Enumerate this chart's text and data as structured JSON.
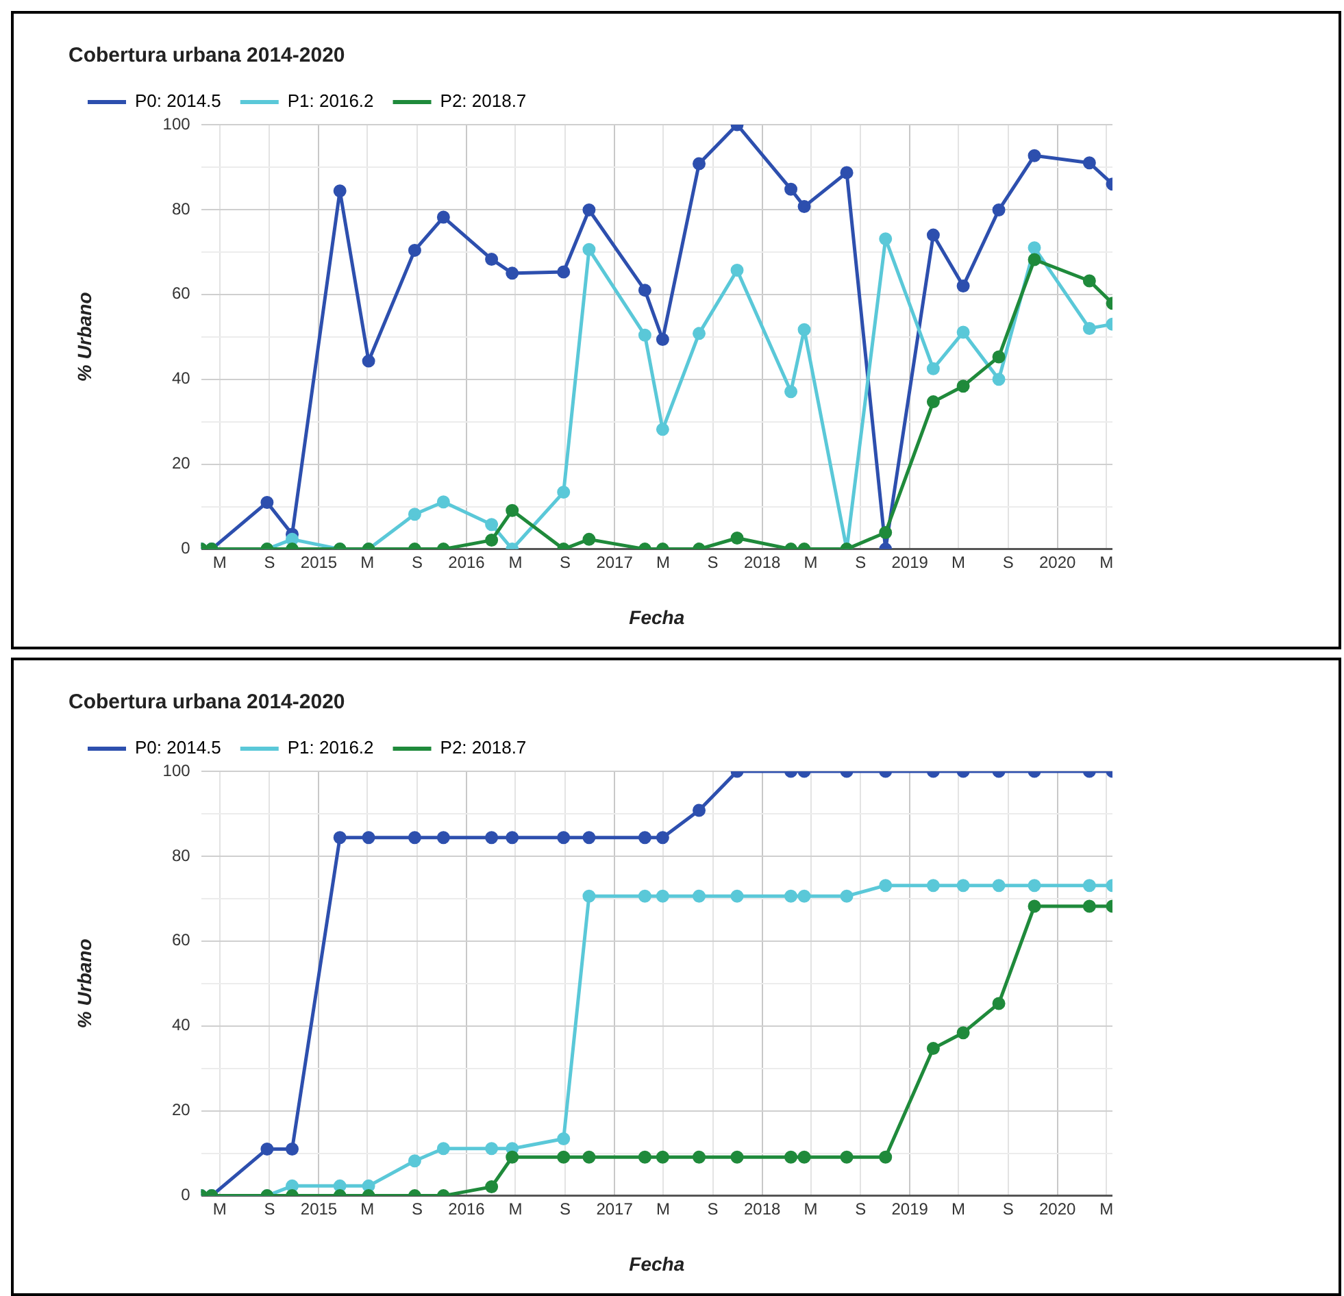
{
  "chart_data": [
    {
      "type": "line",
      "title": "Cobertura urbana 2014-2020",
      "xlabel": "Fecha",
      "ylabel": "% Urbano",
      "x": [
        "2014-03-16",
        "2014-04-11",
        "2014-08-26",
        "2014-10-27",
        "2015-02-22",
        "2015-05-04",
        "2015-08-26",
        "2015-11-05",
        "2016-03-03",
        "2016-04-23",
        "2016-08-28",
        "2016-10-30",
        "2017-03-17",
        "2017-04-30",
        "2017-07-29",
        "2017-10-31",
        "2018-03-13",
        "2018-04-15",
        "2018-07-29",
        "2018-11-02",
        "2019-02-28",
        "2019-05-13",
        "2019-08-09",
        "2019-11-05",
        "2020-03-20",
        "2020-05-16"
      ],
      "series": [
        {
          "name": "P0: 2014.5",
          "color": "#2d4fae",
          "values": [
            0,
            0,
            11,
            3.5,
            84.4,
            44.3,
            70.4,
            78.2,
            68.3,
            65,
            65.3,
            79.9,
            61,
            49.4,
            90.8,
            100,
            84.8,
            80.7,
            88.7,
            0,
            74,
            62,
            79.9,
            92.7,
            91,
            86
          ]
        },
        {
          "name": "P1: 2016.2",
          "color": "#5ac8d8",
          "values": [
            0,
            0,
            0,
            2.3,
            0,
            0,
            8.2,
            11.1,
            5.8,
            0,
            13.4,
            70.6,
            50.4,
            28.2,
            50.8,
            65.7,
            37.1,
            51.7,
            0,
            73.1,
            42.5,
            51.1,
            40,
            71,
            52,
            53
          ]
        },
        {
          "name": "P2: 2018.7",
          "color": "#1f8a3b",
          "values": [
            0,
            0,
            0,
            0,
            0,
            0,
            0,
            0,
            2.1,
            9.1,
            0,
            2.3,
            0,
            0,
            0,
            2.6,
            0,
            0,
            0,
            3.9,
            34.7,
            38.4,
            45.3,
            68.2,
            63.2,
            57.9
          ]
        }
      ],
      "xlim": [
        "2014-03-16",
        "2020-05-16"
      ],
      "xticks": [
        {
          "value": "2014-05-01",
          "label": "M"
        },
        {
          "value": "2014-09-01",
          "label": "S"
        },
        {
          "value": "2015-01-01",
          "label": "2015"
        },
        {
          "value": "2015-05-01",
          "label": "M"
        },
        {
          "value": "2015-09-01",
          "label": "S"
        },
        {
          "value": "2016-01-01",
          "label": "2016"
        },
        {
          "value": "2016-05-01",
          "label": "M"
        },
        {
          "value": "2016-09-01",
          "label": "S"
        },
        {
          "value": "2017-01-01",
          "label": "2017"
        },
        {
          "value": "2017-05-01",
          "label": "M"
        },
        {
          "value": "2017-09-01",
          "label": "S"
        },
        {
          "value": "2018-01-01",
          "label": "2018"
        },
        {
          "value": "2018-05-01",
          "label": "M"
        },
        {
          "value": "2018-09-01",
          "label": "S"
        },
        {
          "value": "2019-01-01",
          "label": "2019"
        },
        {
          "value": "2019-05-01",
          "label": "M"
        },
        {
          "value": "2019-09-01",
          "label": "S"
        },
        {
          "value": "2020-01-01",
          "label": "2020"
        },
        {
          "value": "2020-05-01",
          "label": "M"
        }
      ],
      "ylim": [
        0,
        100
      ],
      "yticks": [
        0,
        {
          "value": 10,
          "label": null
        },
        20,
        {
          "value": 30,
          "label": null
        },
        40,
        {
          "value": 50,
          "label": null
        },
        60,
        {
          "value": 70,
          "label": null
        },
        80,
        {
          "value": 90,
          "label": null
        },
        100
      ],
      "grid": true,
      "legend": "top",
      "marker": "circle",
      "line_style": "solid"
    },
    {
      "type": "line",
      "title": "Cobertura urbana 2014-2020",
      "xlabel": "Fecha",
      "ylabel": "% Urbano",
      "x": [
        "2014-03-16",
        "2014-04-11",
        "2014-08-26",
        "2014-10-27",
        "2015-02-22",
        "2015-05-04",
        "2015-08-26",
        "2015-11-05",
        "2016-03-03",
        "2016-04-23",
        "2016-08-28",
        "2016-10-30",
        "2017-03-17",
        "2017-04-30",
        "2017-07-29",
        "2017-10-31",
        "2018-03-13",
        "2018-04-15",
        "2018-07-29",
        "2018-11-02",
        "2019-02-28",
        "2019-05-13",
        "2019-08-09",
        "2019-11-05",
        "2020-03-20",
        "2020-05-16"
      ],
      "series": [
        {
          "name": "P0: 2014.5",
          "color": "#2d4fae",
          "values": [
            0,
            0,
            11,
            11,
            84.4,
            84.4,
            84.4,
            84.4,
            84.4,
            84.4,
            84.4,
            84.4,
            84.4,
            84.4,
            90.8,
            100,
            100,
            100,
            100,
            100,
            100,
            100,
            100,
            100,
            100,
            100
          ]
        },
        {
          "name": "P1: 2016.2",
          "color": "#5ac8d8",
          "values": [
            0,
            0,
            0,
            2.3,
            2.3,
            2.3,
            8.2,
            11.1,
            11.1,
            11.1,
            13.4,
            70.6,
            70.6,
            70.6,
            70.6,
            70.6,
            70.6,
            70.6,
            70.6,
            73.1,
            73.1,
            73.1,
            73.1,
            73.1,
            73.1,
            73.1
          ]
        },
        {
          "name": "P2: 2018.7",
          "color": "#1f8a3b",
          "values": [
            0,
            0,
            0,
            0,
            0,
            0,
            0,
            0,
            2.1,
            9.1,
            9.1,
            9.1,
            9.1,
            9.1,
            9.1,
            9.1,
            9.1,
            9.1,
            9.1,
            9.1,
            34.7,
            38.4,
            45.3,
            68.2,
            68.2,
            68.2
          ]
        }
      ],
      "xlim": [
        "2014-03-16",
        "2020-05-16"
      ],
      "xticks": [
        {
          "value": "2014-05-01",
          "label": "M"
        },
        {
          "value": "2014-09-01",
          "label": "S"
        },
        {
          "value": "2015-01-01",
          "label": "2015"
        },
        {
          "value": "2015-05-01",
          "label": "M"
        },
        {
          "value": "2015-09-01",
          "label": "S"
        },
        {
          "value": "2016-01-01",
          "label": "2016"
        },
        {
          "value": "2016-05-01",
          "label": "M"
        },
        {
          "value": "2016-09-01",
          "label": "S"
        },
        {
          "value": "2017-01-01",
          "label": "2017"
        },
        {
          "value": "2017-05-01",
          "label": "M"
        },
        {
          "value": "2017-09-01",
          "label": "S"
        },
        {
          "value": "2018-01-01",
          "label": "2018"
        },
        {
          "value": "2018-05-01",
          "label": "M"
        },
        {
          "value": "2018-09-01",
          "label": "S"
        },
        {
          "value": "2019-01-01",
          "label": "2019"
        },
        {
          "value": "2019-05-01",
          "label": "M"
        },
        {
          "value": "2019-09-01",
          "label": "S"
        },
        {
          "value": "2020-01-01",
          "label": "2020"
        },
        {
          "value": "2020-05-01",
          "label": "M"
        }
      ],
      "ylim": [
        0,
        100
      ],
      "yticks": [
        0,
        {
          "value": 10,
          "label": null
        },
        20,
        {
          "value": 30,
          "label": null
        },
        40,
        {
          "value": 50,
          "label": null
        },
        60,
        {
          "value": 70,
          "label": null
        },
        80,
        {
          "value": 90,
          "label": null
        },
        100
      ],
      "grid": true,
      "legend": "top",
      "marker": "circle",
      "line_style": "solid"
    }
  ]
}
